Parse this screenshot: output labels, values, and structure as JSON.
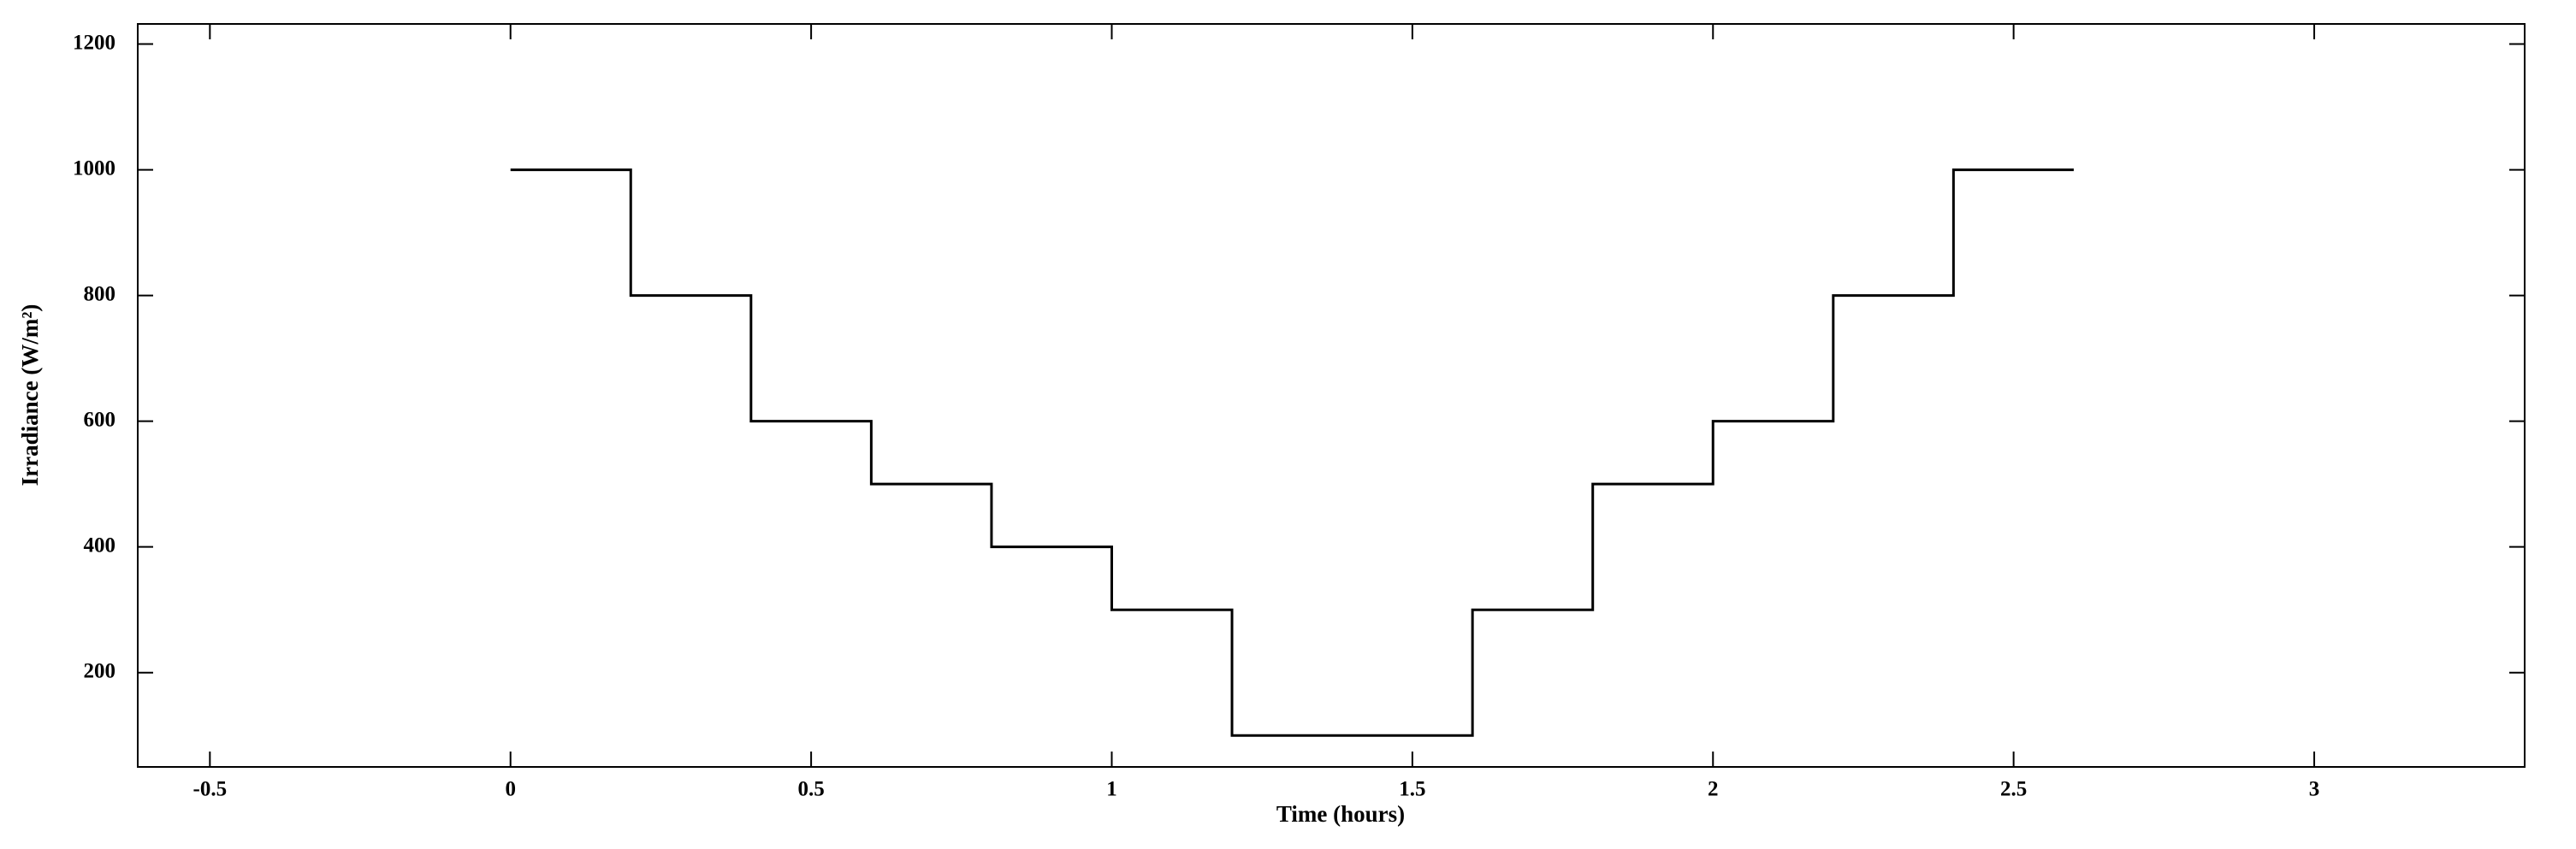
{
  "chart_data": {
    "type": "line",
    "xlabel": "Time (hours)",
    "ylabel": "Irradiance (W/m²)",
    "series": [
      {
        "color": "#000000",
        "x": [
          0,
          0.2,
          0.2,
          0.4,
          0.4,
          0.6,
          0.6,
          0.8,
          0.8,
          1,
          1,
          1.2,
          1.2,
          1.6,
          1.6,
          1.8,
          1.8,
          2,
          2,
          2.2,
          2.2,
          2.4,
          2.4,
          2.6
        ],
        "values": [
          1000,
          1000,
          800,
          800,
          600,
          600,
          500,
          500,
          400,
          400,
          300,
          300,
          100,
          100,
          300,
          300,
          500,
          500,
          600,
          600,
          800,
          800,
          1000,
          1000
        ]
      }
    ],
    "xlim": [
      -0.62,
      3.35
    ],
    "xticks": [
      -0.5,
      0,
      0.5,
      1,
      1.5,
      2,
      2.5,
      3
    ],
    "ylim": [
      50,
      1232
    ],
    "yticks": [
      200,
      400,
      600,
      800,
      1000,
      1200
    ],
    "grid": false
  }
}
